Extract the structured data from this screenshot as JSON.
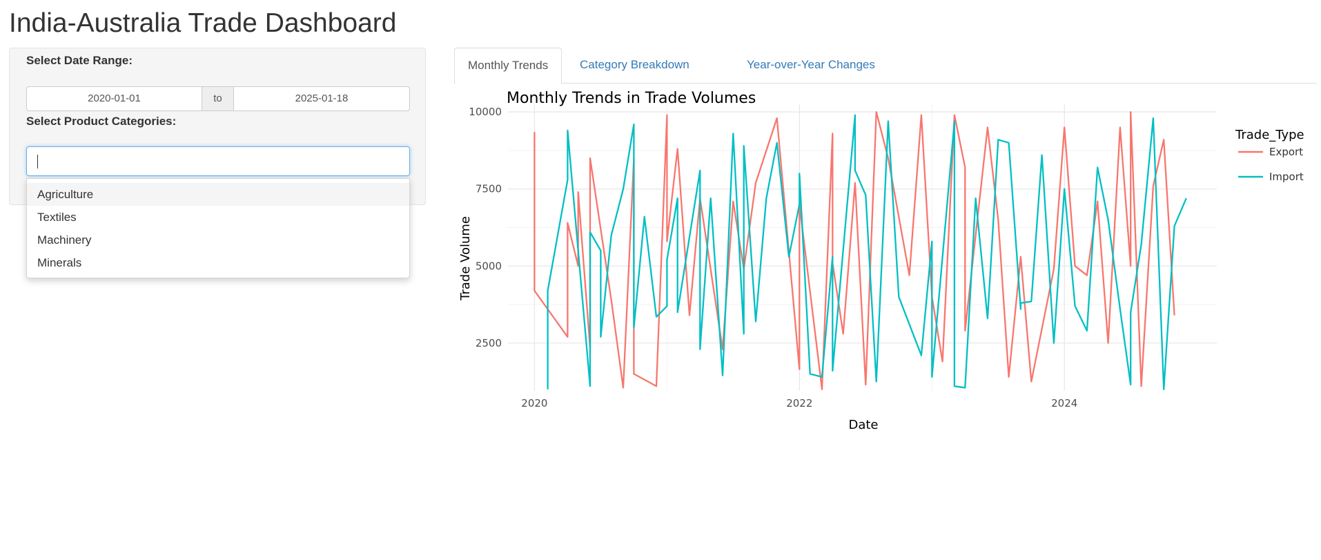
{
  "app": {
    "title": "India-Australia Trade Dashboard"
  },
  "sidebar": {
    "date_label": "Select Date Range:",
    "date_start": "2020-01-01",
    "date_sep": "to",
    "date_end": "2025-01-18",
    "category_label": "Select Product Categories:",
    "category_value": "",
    "category_options": [
      "Agriculture",
      "Textiles",
      "Machinery",
      "Minerals"
    ]
  },
  "tabs": [
    "Monthly Trends",
    "Category Breakdown",
    "Year-over-Year Changes"
  ],
  "colors": {
    "export": "#F8766D",
    "import": "#00BFC4",
    "link": "#337ab7",
    "focus": "#66afe9"
  },
  "chart_data": {
    "type": "line",
    "title": "Monthly Trends in Trade Volumes",
    "xlabel": "Date",
    "ylabel": "Trade Volume",
    "xlim": [
      2019.8,
      2025.15
    ],
    "ylim": [
      950,
      10250
    ],
    "x_ticks": [
      2020,
      2022,
      2024
    ],
    "x_tick_labels": [
      "2020",
      "2022",
      "2024"
    ],
    "y_ticks": [
      2500,
      5000,
      7500,
      10000
    ],
    "y_tick_labels": [
      "2500",
      "5000",
      "7500",
      "10000"
    ],
    "legend_title": "Trade_Type",
    "legend_position": "right",
    "series": [
      {
        "name": "Export",
        "color": "#F8766D",
        "x": [
          2020.0,
          2020.0,
          2020.0,
          2020.25,
          2020.25,
          2020.33,
          2020.33,
          2020.42,
          2020.42,
          2020.58,
          2020.67,
          2020.75,
          2020.75,
          2020.92,
          2021.0,
          2021.0,
          2021.08,
          2021.17,
          2021.25,
          2021.42,
          2021.5,
          2021.58,
          2021.67,
          2021.83,
          2022.0,
          2022.0,
          2022.17,
          2022.25,
          2022.25,
          2022.33,
          2022.42,
          2022.5,
          2022.58,
          2022.67,
          2022.83,
          2022.92,
          2023.0,
          2023.08,
          2023.17,
          2023.25,
          2023.25,
          2023.42,
          2023.5,
          2023.58,
          2023.67,
          2023.75,
          2023.92,
          2024.0,
          2024.08,
          2024.17,
          2024.25,
          2024.33,
          2024.42,
          2024.5,
          2024.5,
          2024.58,
          2024.67,
          2024.75,
          2024.83
        ],
        "y": [
          9350,
          6300,
          4200,
          2700,
          6400,
          5000,
          7400,
          2350,
          8500,
          3900,
          1050,
          8500,
          1500,
          1100,
          9900,
          5800,
          8800,
          3400,
          7200,
          2300,
          7100,
          4900,
          7700,
          9800,
          1650,
          7000,
          1000,
          9300,
          5100,
          2800,
          7700,
          1150,
          10000,
          8500,
          4700,
          9900,
          4000,
          1900,
          9900,
          8200,
          2900,
          9500,
          6500,
          1400,
          5300,
          1250,
          4900,
          9500,
          5000,
          4700,
          7100,
          2500,
          9500,
          5000,
          10000,
          1100,
          7600,
          9100,
          3400
        ]
      },
      {
        "name": "Import",
        "color": "#00BFC4",
        "x": [
          2020.1,
          2020.1,
          2020.25,
          2020.25,
          2020.42,
          2020.42,
          2020.5,
          2020.5,
          2020.58,
          2020.67,
          2020.75,
          2020.75,
          2020.83,
          2020.92,
          2021.0,
          2021.0,
          2021.08,
          2021.08,
          2021.25,
          2021.25,
          2021.33,
          2021.42,
          2021.5,
          2021.58,
          2021.58,
          2021.67,
          2021.75,
          2021.83,
          2021.92,
          2022.0,
          2022.0,
          2022.08,
          2022.17,
          2022.25,
          2022.25,
          2022.42,
          2022.42,
          2022.5,
          2022.58,
          2022.67,
          2022.75,
          2022.92,
          2023.0,
          2023.0,
          2023.17,
          2023.17,
          2023.25,
          2023.33,
          2023.42,
          2023.5,
          2023.58,
          2023.67,
          2023.67,
          2023.75,
          2023.83,
          2023.92,
          2024.0,
          2024.08,
          2024.17,
          2024.25,
          2024.33,
          2024.42,
          2024.5,
          2024.5,
          2024.58,
          2024.67,
          2024.75,
          2024.83,
          2024.92
        ],
        "y": [
          1000,
          4200,
          7800,
          9400,
          1100,
          6100,
          5500,
          2700,
          6000,
          7500,
          9600,
          3000,
          6600,
          3350,
          3700,
          5200,
          7200,
          3500,
          8100,
          2300,
          7200,
          1450,
          9300,
          2800,
          8900,
          3200,
          7200,
          9000,
          5300,
          7000,
          8000,
          1500,
          1400,
          5300,
          1600,
          9900,
          8100,
          7300,
          1250,
          9700,
          4000,
          2100,
          5800,
          1400,
          9700,
          1100,
          1050,
          7200,
          3300,
          9100,
          9000,
          3600,
          3800,
          3850,
          8600,
          2500,
          7500,
          3700,
          2900,
          8200,
          6500,
          3600,
          1150,
          3500,
          5700,
          9800,
          1000,
          6300,
          7200
        ]
      }
    ]
  }
}
